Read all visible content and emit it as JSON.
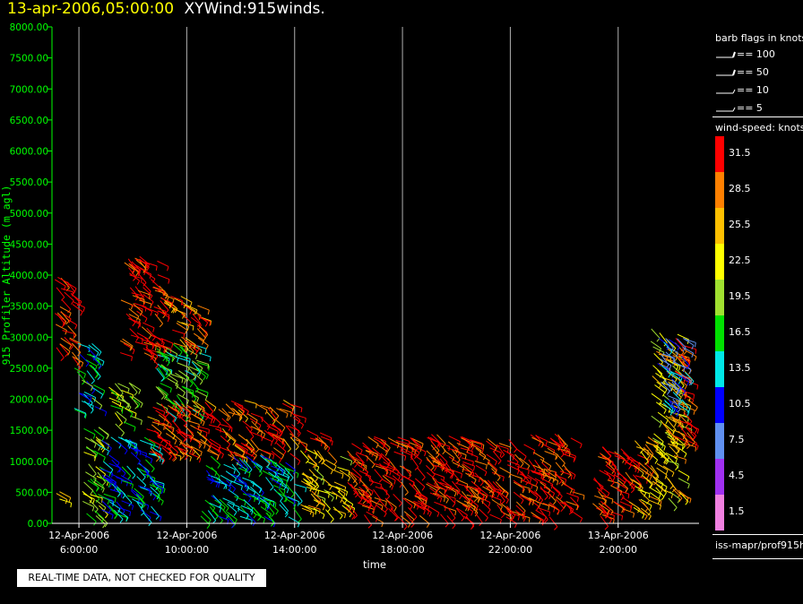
{
  "header": {
    "timestamp": "13-apr-2006,05:00:00",
    "product": "XYWind:915winds."
  },
  "legend": {
    "barb_title": "barb flags in knots",
    "flags": [
      "== 100",
      "== 50",
      "== 10",
      "== 5"
    ],
    "speed_title": "wind-speed: knots",
    "speed_scale": [
      {
        "label": "31.5",
        "color": "#ff0000"
      },
      {
        "label": "28.5",
        "color": "#ff8000"
      },
      {
        "label": "25.5",
        "color": "#ffc000"
      },
      {
        "label": "22.5",
        "color": "#ffff00"
      },
      {
        "label": "19.5",
        "color": "#a0e030"
      },
      {
        "label": "16.5",
        "color": "#00e000"
      },
      {
        "label": "13.5",
        "color": "#00e8e8"
      },
      {
        "label": "10.5",
        "color": "#0000ff"
      },
      {
        "label": "7.5",
        "color": "#6090f0"
      },
      {
        "label": "4.5",
        "color": "#a030f0"
      },
      {
        "label": "1.5",
        "color": "#f080e0"
      }
    ],
    "source": "iss-mapr/prof915h"
  },
  "footer": {
    "qc_notice": "REAL-TIME DATA, NOT CHECKED FOR QUALITY"
  },
  "chart_data": {
    "type": "scatter",
    "xlabel": "time",
    "ylabel": "915 Profiler Altitude (m agl)",
    "ylim": [
      0,
      8000
    ],
    "yticks": [
      "0.00",
      "500.00",
      "1000.00",
      "1500.00",
      "2000.00",
      "2500.00",
      "3000.00",
      "3500.00",
      "4000.00",
      "4500.00",
      "5000.00",
      "5500.00",
      "6000.00",
      "6500.00",
      "7000.00",
      "7500.00",
      "8000.00"
    ],
    "xlim_hours": [
      5.0,
      29.0
    ],
    "xticks": [
      {
        "hour": 6,
        "date": "12-Apr-2006",
        "time": "6:00:00"
      },
      {
        "hour": 10,
        "date": "12-Apr-2006",
        "time": "10:00:00"
      },
      {
        "hour": 14,
        "date": "12-Apr-2006",
        "time": "14:00:00"
      },
      {
        "hour": 18,
        "date": "12-Apr-2006",
        "time": "18:00:00"
      },
      {
        "hour": 22,
        "date": "12-Apr-2006",
        "time": "22:00:00"
      },
      {
        "hour": 26,
        "date": "13-Apr-2006",
        "time": "2:00:00"
      }
    ],
    "grid": "vertical",
    "marker": "wind barb",
    "clusters": [
      {
        "t0": 5.1,
        "t1": 5.8,
        "zmin": 2600,
        "zmax": 4000,
        "speed": 31
      },
      {
        "t0": 5.1,
        "t1": 5.3,
        "zmin": 200,
        "zmax": 600,
        "speed": 22
      },
      {
        "t0": 5.8,
        "t1": 6.6,
        "zmin": 1800,
        "zmax": 2900,
        "speed": 15
      },
      {
        "t0": 6.1,
        "t1": 6.8,
        "zmin": 100,
        "zmax": 1600,
        "speed": 20
      },
      {
        "t0": 6.7,
        "t1": 8.8,
        "zmin": 100,
        "zmax": 1400,
        "speed": 13
      },
      {
        "t0": 7.0,
        "t1": 8.0,
        "zmin": 1600,
        "zmax": 2300,
        "speed": 20
      },
      {
        "t0": 7.5,
        "t1": 9.0,
        "zmin": 2700,
        "zmax": 4300,
        "speed": 31
      },
      {
        "t0": 8.8,
        "t1": 10.5,
        "zmin": 1800,
        "zmax": 2900,
        "speed": 17
      },
      {
        "t0": 9.0,
        "t1": 10.5,
        "zmin": 2900,
        "zmax": 3700,
        "speed": 29
      },
      {
        "t0": 8.5,
        "t1": 14.0,
        "zmin": 1100,
        "zmax": 2000,
        "speed": 30
      },
      {
        "t0": 10.5,
        "t1": 14.0,
        "zmin": 100,
        "zmax": 1100,
        "speed": 14
      },
      {
        "t0": 14.0,
        "t1": 15.0,
        "zmin": 1300,
        "zmax": 1600,
        "speed": 31
      },
      {
        "t0": 14.2,
        "t1": 15.8,
        "zmin": 200,
        "zmax": 1200,
        "speed": 24
      },
      {
        "t0": 15.9,
        "t1": 24.3,
        "zmin": 100,
        "zmax": 1450,
        "speed": 31
      },
      {
        "t0": 25.0,
        "t1": 26.2,
        "zmin": 100,
        "zmax": 1300,
        "speed": 31
      },
      {
        "t0": 26.0,
        "t1": 27.0,
        "zmin": 700,
        "zmax": 1150,
        "speed": 31
      },
      {
        "t0": 26.4,
        "t1": 27.2,
        "zmin": 200,
        "zmax": 1400,
        "speed": 26
      },
      {
        "t0": 27.2,
        "t1": 28.3,
        "zmin": 400,
        "zmax": 3200,
        "speed": 24
      },
      {
        "t0": 28.0,
        "t1": 28.6,
        "zmin": 1200,
        "zmax": 3000,
        "speed": 31
      },
      {
        "t0": 27.4,
        "t1": 28.5,
        "zmin": 1900,
        "zmax": 3000,
        "speed": 10
      }
    ]
  }
}
